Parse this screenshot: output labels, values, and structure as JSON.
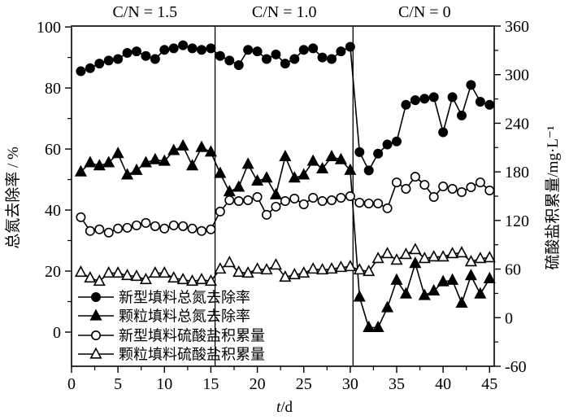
{
  "page": {
    "background": "#ffffff",
    "foreground": "#000000"
  },
  "chart_data": {
    "type": "line",
    "title": "",
    "x_first_day": 1,
    "x_step": 1,
    "axes": {
      "x": {
        "label": "t/d",
        "lim": [
          0,
          45.5
        ],
        "major_ticks": [
          0,
          5,
          10,
          15,
          20,
          25,
          30,
          35,
          40,
          45
        ],
        "minor_ticks": [
          2.5,
          7.5,
          12.5,
          17.5,
          22.5,
          27.5,
          32.5,
          37.5,
          42.5
        ]
      },
      "left": {
        "label": "总氮去除率 / %",
        "lim": [
          -11.2,
          100.3
        ],
        "major_ticks": [
          0,
          20,
          40,
          60,
          80,
          100
        ],
        "minor_ticks": [
          10,
          30,
          50,
          70,
          90
        ]
      },
      "right": {
        "label": "硫酸盐积累量/mg·L⁻¹",
        "lim": [
          -60,
          360
        ],
        "major_ticks": [
          -60,
          0,
          60,
          120,
          180,
          240,
          300,
          360
        ],
        "minor_ticks": [
          -30,
          30,
          90,
          150,
          210,
          270,
          330
        ]
      }
    },
    "dividers_x": [
      15.45,
      30.3
    ],
    "region_labels": [
      {
        "label": "C/N = 1.5",
        "x": 7.9
      },
      {
        "label": "C/N = 1.0",
        "x": 22.9
      },
      {
        "label": "C/N = 0",
        "x": 38.0
      }
    ],
    "legend_position": "lower-left-inside",
    "grid": false,
    "series": [
      {
        "id": "new-filler-tn-removal",
        "name": "新型填料总氮去除率",
        "marker": "filled-circle",
        "axis": "left",
        "color": "#000000",
        "values": [
          85.5,
          86.5,
          88,
          89,
          89.5,
          91.5,
          92,
          90.5,
          89.5,
          92.5,
          93,
          94,
          93,
          92.5,
          93,
          90.5,
          89,
          87.5,
          92.5,
          92,
          89.5,
          91,
          88,
          89.5,
          92.5,
          93,
          90,
          89.5,
          92,
          93.5,
          59,
          53,
          58.5,
          61.5,
          62.5,
          74.5,
          76,
          76.5,
          77,
          65.5,
          77,
          71,
          81,
          75.5,
          74.5
        ]
      },
      {
        "id": "granular-filler-tn-removal",
        "name": "颗粒填料总氮去除率",
        "marker": "filled-triangle",
        "axis": "left",
        "color": "#000000",
        "values": [
          52.5,
          55.5,
          54.5,
          55.5,
          58.5,
          51.5,
          53,
          55.5,
          56.5,
          56,
          59.5,
          61,
          54.5,
          60.5,
          59,
          52,
          46,
          47.5,
          55,
          49.5,
          50.5,
          45,
          57.5,
          50.5,
          51.5,
          56,
          53.5,
          57.5,
          56.5,
          53,
          11.5,
          1.5,
          1.5,
          8,
          17,
          12.5,
          22.5,
          12,
          13.5,
          16.5,
          17,
          9.5,
          18.5,
          12.5,
          17.5
        ]
      },
      {
        "id": "new-filler-sulfate",
        "name": "新型填料硫酸盐积累量",
        "marker": "open-circle",
        "axis": "right",
        "color": "#000000",
        "values": [
          124,
          107,
          109,
          105,
          110,
          111,
          114,
          117,
          113,
          110,
          114,
          113,
          110,
          107,
          109,
          131,
          145,
          144,
          145,
          149,
          127,
          137,
          144,
          147,
          140,
          148,
          144,
          145,
          148,
          150,
          142,
          141,
          141,
          135,
          167,
          159,
          174,
          164,
          149,
          162,
          159,
          155,
          161,
          167,
          157
        ]
      },
      {
        "id": "granular-filler-sulfate",
        "name": "颗粒填料硫酸盐积累量",
        "marker": "open-triangle",
        "axis": "right",
        "color": "#000000",
        "values": [
          56,
          49,
          45,
          55,
          55,
          52,
          51,
          47,
          55,
          55,
          49,
          47,
          45,
          47,
          45,
          60,
          68,
          56,
          55,
          60,
          59,
          65,
          50,
          53,
          55,
          60,
          59,
          60,
          62,
          63,
          59,
          57,
          73,
          79,
          71,
          78,
          84,
          73,
          75,
          75,
          79,
          80,
          69,
          73,
          74
        ]
      }
    ]
  }
}
